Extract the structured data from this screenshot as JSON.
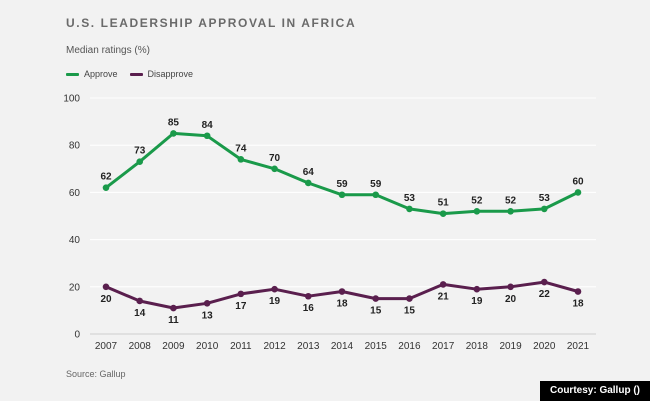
{
  "title": "U.S. LEADERSHIP APPROVAL IN AFRICA",
  "subtitle": "Median ratings (%)",
  "source": "Source: Gallup",
  "credit": "Courtesy: Gallup ()",
  "chart_data": {
    "type": "line",
    "title": "U.S. LEADERSHIP APPROVAL IN AFRICA",
    "subtitle": "Median ratings (%)",
    "x": [
      "2007",
      "2008",
      "2009",
      "2010",
      "2011",
      "2012",
      "2013",
      "2014",
      "2015",
      "2016",
      "2017",
      "2018",
      "2019",
      "2020",
      "2021"
    ],
    "ylim": [
      0,
      100
    ],
    "yticks": [
      0,
      20,
      40,
      60,
      80,
      100
    ],
    "grid": true,
    "legend_position": "top-left",
    "series": [
      {
        "name": "Approve",
        "color": "#1a9a4a",
        "values": [
          62,
          73,
          85,
          84,
          74,
          70,
          64,
          59,
          59,
          53,
          51,
          52,
          52,
          53,
          60
        ]
      },
      {
        "name": "Disapprove",
        "color": "#5a1f4e",
        "values": [
          20,
          14,
          11,
          13,
          17,
          19,
          16,
          18,
          15,
          15,
          21,
          19,
          20,
          22,
          18
        ]
      }
    ]
  }
}
